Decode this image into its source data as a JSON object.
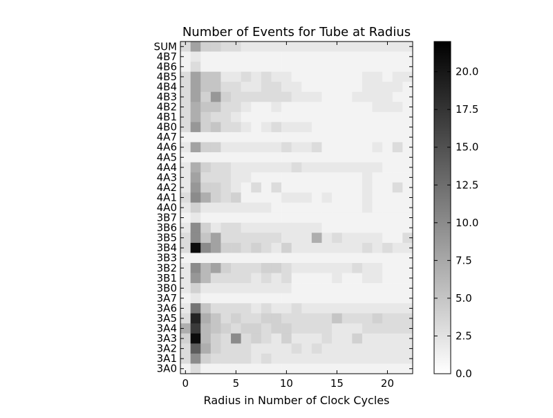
{
  "chart_data": {
    "type": "heatmap",
    "title": "Number of Events for Tube at Radius",
    "xlabel": "Radius in Number of Clock Cycles",
    "ylabel": "",
    "x_ticks": [
      0,
      5,
      10,
      15,
      20
    ],
    "xlim": [
      -0.5,
      22.5
    ],
    "rows": [
      "SUM",
      "4B7",
      "4B6",
      "4B5",
      "4B4",
      "4B3",
      "4B2",
      "4B1",
      "4B0",
      "4A7",
      "4A6",
      "4A5",
      "4A4",
      "4A3",
      "4A2",
      "4A1",
      "4A0",
      "3B7",
      "3B6",
      "3B5",
      "3B4",
      "3B3",
      "3B2",
      "3B1",
      "3B0",
      "3A7",
      "3A6",
      "3A5",
      "3A4",
      "3A3",
      "3A2",
      "3A1",
      "3A0"
    ],
    "colorbar": {
      "min": 0,
      "max": 22,
      "ticks": [
        0.0,
        2.5,
        5.0,
        7.5,
        10.0,
        12.5,
        15.0,
        17.5,
        20.0
      ],
      "tick_labels": [
        "0.0",
        "2.5",
        "5.0",
        "7.5",
        "10.0",
        "12.5",
        "15.0",
        "17.5",
        "20.0"
      ],
      "colormap": "gray_r"
    },
    "values": [
      [
        3,
        8,
        4,
        4,
        3,
        3,
        2,
        2,
        2,
        2,
        2,
        2,
        2,
        2,
        2,
        2,
        2,
        2,
        2,
        2,
        2,
        2,
        2
      ],
      [
        1,
        2,
        1,
        1,
        1,
        1,
        1,
        1,
        1,
        1,
        1,
        1,
        1,
        1,
        1,
        1,
        1,
        1,
        1,
        1,
        1,
        1,
        1
      ],
      [
        1,
        3,
        1,
        1,
        1,
        1,
        1,
        1,
        1,
        1,
        1,
        1,
        1,
        1,
        1,
        1,
        1,
        1,
        1,
        1,
        1,
        1,
        1
      ],
      [
        3,
        8,
        5,
        5,
        2,
        2,
        3,
        2,
        3,
        2,
        2,
        1,
        1,
        1,
        1,
        1,
        1,
        1,
        2,
        2,
        1,
        2,
        2
      ],
      [
        3,
        8,
        5,
        5,
        3,
        3,
        2,
        2,
        3,
        3,
        2,
        2,
        1,
        1,
        1,
        1,
        1,
        1,
        2,
        2,
        2,
        2,
        1
      ],
      [
        3,
        8,
        4,
        9,
        4,
        3,
        3,
        3,
        3,
        3,
        3,
        2,
        2,
        2,
        1,
        1,
        1,
        2,
        2,
        2,
        2,
        1,
        1
      ],
      [
        3,
        7,
        5,
        5,
        3,
        3,
        2,
        1,
        1,
        2,
        1,
        1,
        1,
        1,
        1,
        1,
        1,
        1,
        1,
        2,
        2,
        2,
        1
      ],
      [
        3,
        7,
        4,
        3,
        3,
        2,
        1,
        1,
        1,
        1,
        1,
        1,
        1,
        1,
        1,
        1,
        1,
        1,
        1,
        1,
        1,
        1,
        1
      ],
      [
        3,
        9,
        4,
        5,
        3,
        3,
        2,
        1,
        2,
        3,
        2,
        2,
        2,
        1,
        1,
        1,
        1,
        1,
        1,
        1,
        1,
        1,
        1
      ],
      [
        1,
        1,
        1,
        1,
        1,
        1,
        1,
        1,
        1,
        1,
        1,
        1,
        1,
        1,
        1,
        1,
        1,
        1,
        1,
        1,
        1,
        1,
        1
      ],
      [
        2,
        8,
        4,
        4,
        2,
        2,
        2,
        2,
        2,
        2,
        3,
        2,
        2,
        3,
        1,
        1,
        1,
        1,
        1,
        2,
        1,
        3,
        1
      ],
      [
        1,
        1,
        1,
        1,
        1,
        1,
        1,
        1,
        1,
        1,
        1,
        1,
        1,
        1,
        1,
        1,
        1,
        1,
        1,
        1,
        1,
        1,
        1
      ],
      [
        2,
        7,
        4,
        3,
        3,
        2,
        2,
        2,
        2,
        2,
        2,
        3,
        2,
        2,
        2,
        2,
        2,
        2,
        2,
        2,
        1,
        1,
        1
      ],
      [
        2,
        8,
        3,
        3,
        3,
        2,
        2,
        1,
        1,
        1,
        1,
        1,
        1,
        1,
        1,
        1,
        1,
        1,
        2,
        1,
        1,
        1,
        1
      ],
      [
        2,
        9,
        4,
        4,
        3,
        2,
        1,
        3,
        1,
        3,
        1,
        1,
        1,
        1,
        1,
        1,
        1,
        1,
        2,
        1,
        1,
        3,
        1
      ],
      [
        3,
        10,
        7,
        4,
        3,
        4,
        1,
        1,
        1,
        1,
        2,
        2,
        2,
        1,
        2,
        1,
        1,
        1,
        2,
        1,
        1,
        1,
        1
      ],
      [
        2,
        4,
        2,
        2,
        2,
        2,
        2,
        2,
        2,
        1,
        1,
        1,
        1,
        1,
        1,
        1,
        1,
        1,
        2,
        1,
        1,
        1,
        1
      ],
      [
        1,
        2,
        1,
        1,
        1,
        1,
        1,
        1,
        1,
        1,
        1,
        1,
        1,
        1,
        1,
        1,
        1,
        1,
        1,
        1,
        1,
        1,
        1
      ],
      [
        2,
        10,
        4,
        2,
        3,
        3,
        2,
        2,
        2,
        2,
        2,
        2,
        2,
        2,
        1,
        1,
        1,
        1,
        1,
        1,
        1,
        1,
        1
      ],
      [
        3,
        10,
        5,
        8,
        3,
        3,
        3,
        3,
        3,
        3,
        2,
        2,
        2,
        7,
        2,
        3,
        2,
        2,
        2,
        2,
        1,
        1,
        3
      ],
      [
        3,
        21,
        10,
        8,
        4,
        4,
        3,
        4,
        3,
        2,
        4,
        2,
        2,
        2,
        2,
        2,
        2,
        2,
        3,
        2,
        3,
        2,
        2
      ],
      [
        1,
        1,
        1,
        1,
        1,
        1,
        1,
        1,
        1,
        1,
        1,
        1,
        1,
        1,
        1,
        1,
        1,
        1,
        1,
        1,
        1,
        1,
        1
      ],
      [
        2,
        10,
        6,
        8,
        4,
        3,
        3,
        3,
        4,
        4,
        3,
        2,
        2,
        2,
        2,
        2,
        2,
        3,
        2,
        2,
        1,
        1,
        1
      ],
      [
        2,
        9,
        6,
        3,
        3,
        3,
        3,
        2,
        3,
        2,
        3,
        1,
        1,
        1,
        1,
        2,
        1,
        1,
        2,
        2,
        1,
        1,
        1
      ],
      [
        2,
        4,
        2,
        2,
        2,
        2,
        2,
        2,
        2,
        2,
        2,
        1,
        1,
        1,
        1,
        1,
        1,
        1,
        1,
        1,
        1,
        1,
        1
      ],
      [
        1,
        2,
        1,
        1,
        1,
        1,
        1,
        1,
        1,
        1,
        1,
        1,
        1,
        1,
        1,
        1,
        1,
        1,
        1,
        1,
        1,
        1,
        1
      ],
      [
        2,
        12,
        5,
        3,
        3,
        3,
        3,
        2,
        3,
        2,
        2,
        3,
        2,
        2,
        2,
        2,
        2,
        2,
        2,
        2,
        2,
        2,
        2
      ],
      [
        3,
        19,
        7,
        5,
        3,
        4,
        3,
        3,
        4,
        4,
        3,
        3,
        3,
        3,
        3,
        5,
        3,
        3,
        3,
        4,
        3,
        3,
        3
      ],
      [
        7,
        17,
        6,
        5,
        4,
        3,
        4,
        4,
        3,
        4,
        4,
        3,
        3,
        3,
        3,
        2,
        2,
        2,
        3,
        3,
        3,
        3,
        3
      ],
      [
        4,
        21,
        6,
        4,
        3,
        10,
        3,
        4,
        3,
        2,
        4,
        2,
        2,
        2,
        3,
        2,
        2,
        4,
        2,
        2,
        2,
        2,
        2
      ],
      [
        3,
        14,
        7,
        4,
        3,
        3,
        3,
        2,
        2,
        2,
        2,
        3,
        2,
        3,
        2,
        2,
        2,
        2,
        2,
        2,
        2,
        2,
        2
      ],
      [
        3,
        10,
        4,
        3,
        3,
        3,
        3,
        2,
        3,
        2,
        2,
        2,
        2,
        2,
        2,
        2,
        2,
        2,
        2,
        2,
        2,
        2,
        2
      ],
      [
        1,
        3,
        1,
        1,
        1,
        1,
        1,
        1,
        1,
        1,
        1,
        1,
        1,
        1,
        1,
        1,
        1,
        1,
        1,
        1,
        1,
        1,
        1
      ]
    ]
  }
}
